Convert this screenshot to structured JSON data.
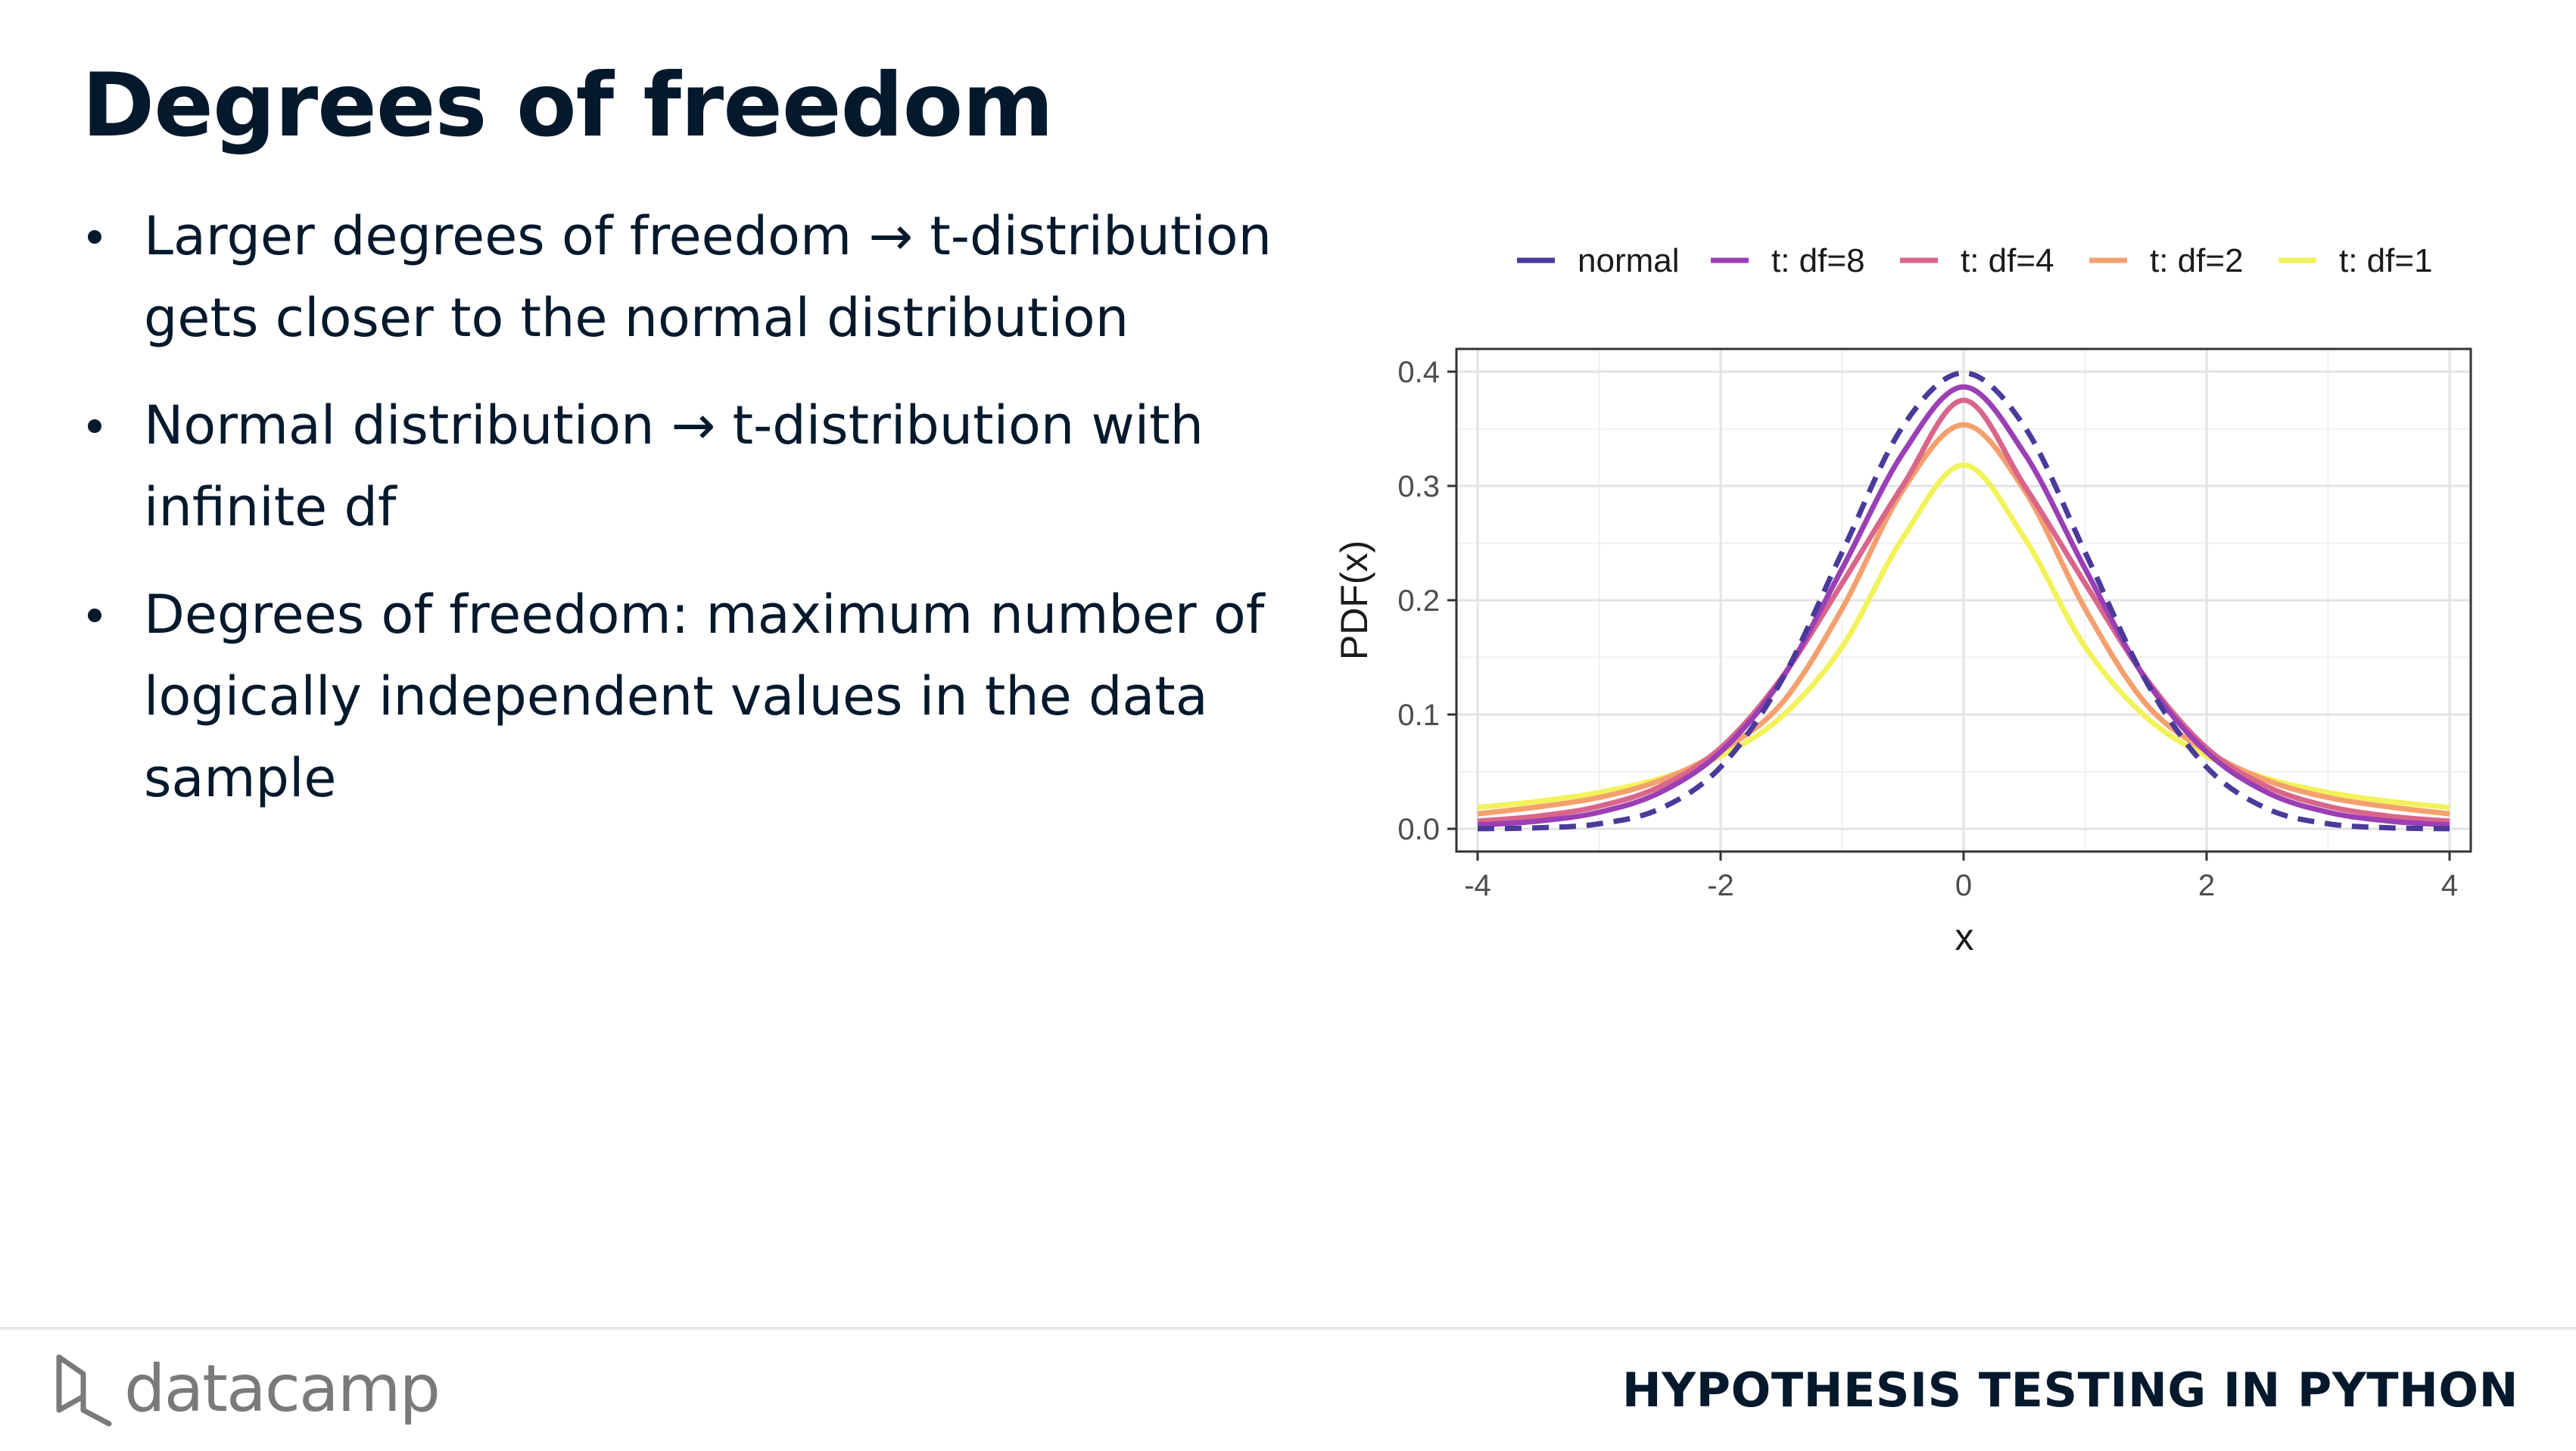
{
  "slide": {
    "title": "Degrees of freedom",
    "bullets": [
      "Larger degrees of freedom → t-distribution gets closer to the normal distribution",
      "Normal distribution → t-distribution with infinite df",
      "Degrees of freedom: maximum number of logically independent values in the data sample"
    ]
  },
  "footer": {
    "brand": "datacamp",
    "course": "HYPOTHESIS TESTING IN PYTHON"
  },
  "colors": {
    "title": "#05192d",
    "normal": "#4a3a9a",
    "df8": "#9b3fb5",
    "df4": "#d9668a",
    "df2": "#f4a06e",
    "df1": "#f2f25a"
  },
  "chart_data": {
    "type": "line",
    "xlabel": "x",
    "ylabel": "PDF(x)",
    "xlim": [
      -4,
      4
    ],
    "ylim": [
      0,
      0.4
    ],
    "xticks": [
      -4,
      -2,
      0,
      2,
      4
    ],
    "yticks": [
      0.0,
      0.1,
      0.2,
      0.3,
      0.4
    ],
    "ytick_labels": [
      "0.0",
      "0.1",
      "0.2",
      "0.3",
      "0.4"
    ],
    "grid": true,
    "legend_position": "top",
    "x": [
      -4,
      -3.5,
      -3,
      -2.5,
      -2,
      -1.5,
      -1,
      -0.5,
      0,
      0.5,
      1,
      1.5,
      2,
      2.5,
      3,
      3.5,
      4
    ],
    "series": [
      {
        "name": "normal",
        "dash": true,
        "color": "#4a3a9a",
        "values": [
          0.0001,
          0.0009,
          0.0044,
          0.0175,
          0.054,
          0.1295,
          0.242,
          0.3521,
          0.3989,
          0.3521,
          0.242,
          0.1295,
          0.054,
          0.0175,
          0.0044,
          0.0009,
          0.0001
        ]
      },
      {
        "name": "t: df=8",
        "dash": false,
        "color": "#9b3fb5",
        "values": [
          0.0033,
          0.0068,
          0.0145,
          0.0317,
          0.0673,
          0.1305,
          0.2276,
          0.3286,
          0.3867,
          0.3286,
          0.2276,
          0.1305,
          0.0673,
          0.0317,
          0.0145,
          0.0068,
          0.0033
        ]
      },
      {
        "name": "t: df=4",
        "dash": false,
        "color": "#d9668a",
        "values": [
          0.0067,
          0.0111,
          0.0197,
          0.0369,
          0.0707,
          0.1318,
          0.2147,
          0.3004,
          0.375,
          0.3004,
          0.2147,
          0.1318,
          0.0707,
          0.0369,
          0.0197,
          0.0111,
          0.0067
        ]
      },
      {
        "name": "t: df=2",
        "dash": false,
        "color": "#f4a06e",
        "values": [
          0.0131,
          0.0192,
          0.0274,
          0.0422,
          0.068,
          0.1094,
          0.1925,
          0.2963,
          0.3536,
          0.2963,
          0.1925,
          0.1094,
          0.068,
          0.0422,
          0.0274,
          0.0192,
          0.0131
        ]
      },
      {
        "name": "t: df=1",
        "dash": false,
        "color": "#f2f25a",
        "values": [
          0.0187,
          0.024,
          0.0318,
          0.0439,
          0.0637,
          0.0979,
          0.1592,
          0.2546,
          0.3183,
          0.2546,
          0.1592,
          0.0979,
          0.0637,
          0.0439,
          0.0318,
          0.024,
          0.0187
        ]
      }
    ]
  }
}
